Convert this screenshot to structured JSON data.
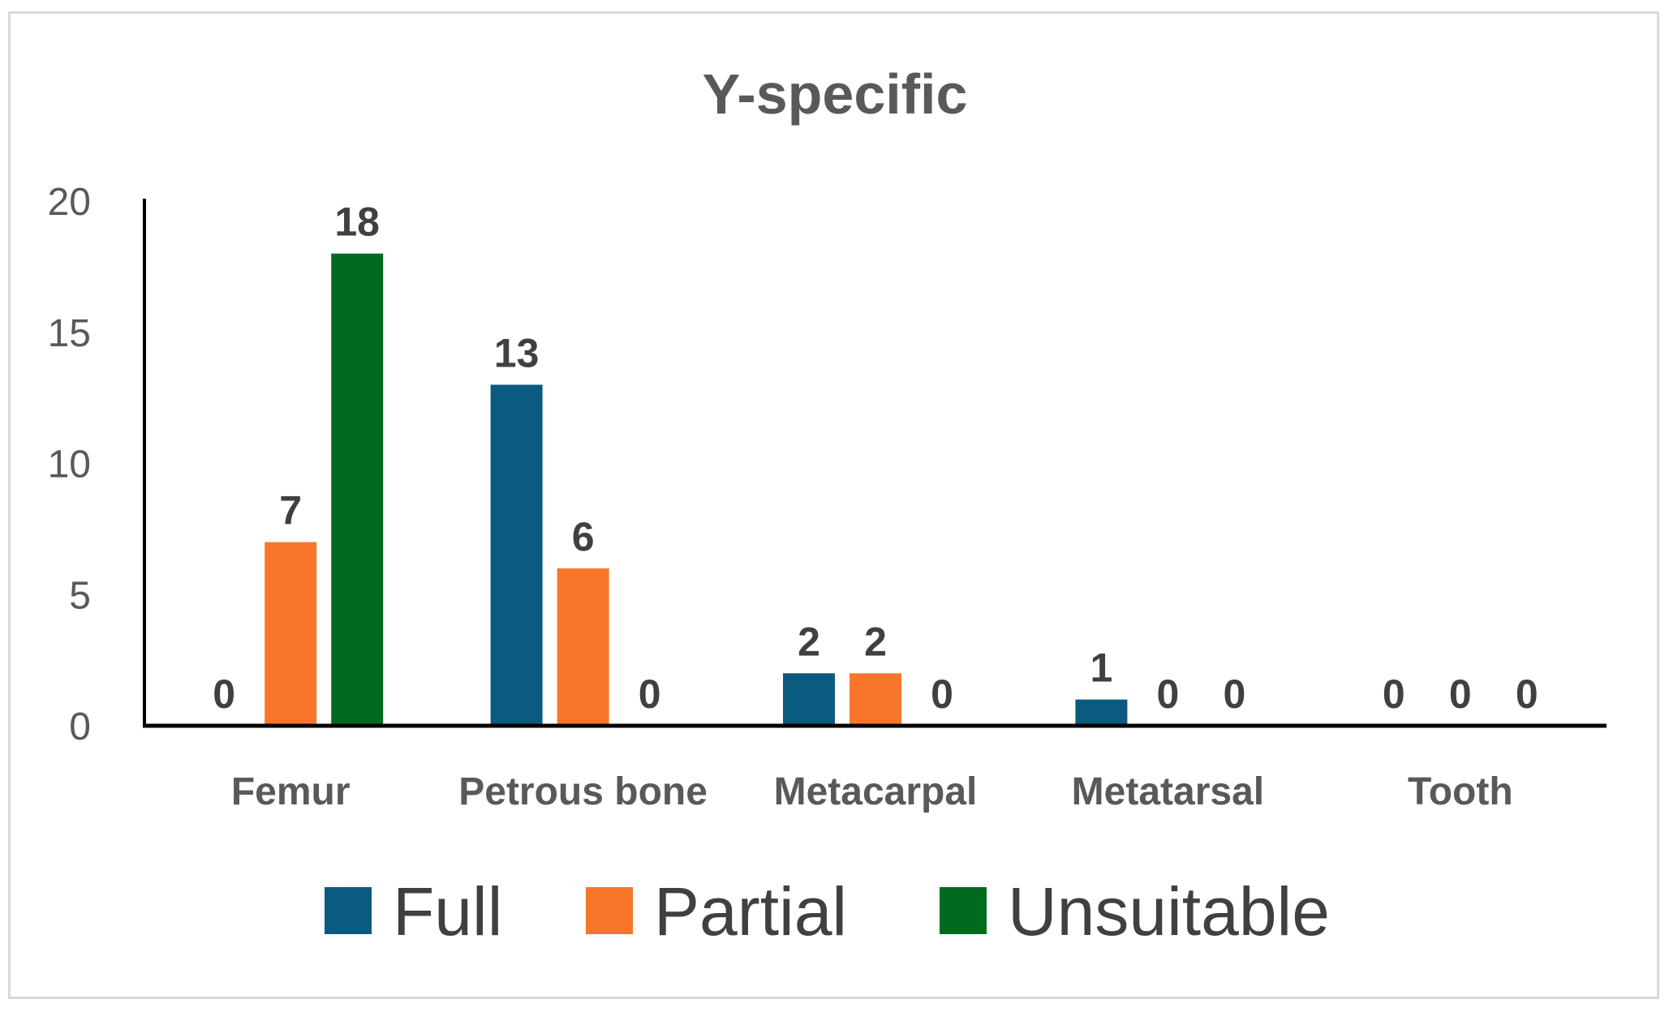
{
  "chart_data": {
    "type": "bar",
    "title": "Y-specific",
    "xlabel": "",
    "ylabel": "",
    "categories": [
      "Femur",
      "Petrous bone",
      "Metacarpal",
      "Metatarsal",
      "Tooth"
    ],
    "series": [
      {
        "name": "Full",
        "color": "#0b5a80",
        "values": [
          0,
          13,
          2,
          1,
          0
        ]
      },
      {
        "name": "Partial",
        "color": "#f8762a",
        "values": [
          7,
          6,
          2,
          0,
          0
        ]
      },
      {
        "name": "Unsuitable",
        "color": "#006b1f",
        "values": [
          18,
          0,
          0,
          0,
          0
        ]
      }
    ],
    "ylim": [
      0,
      20
    ],
    "yticks": [
      0,
      5,
      10,
      15,
      20
    ],
    "grid": false,
    "legend_position": "bottom",
    "data_labels": true
  }
}
